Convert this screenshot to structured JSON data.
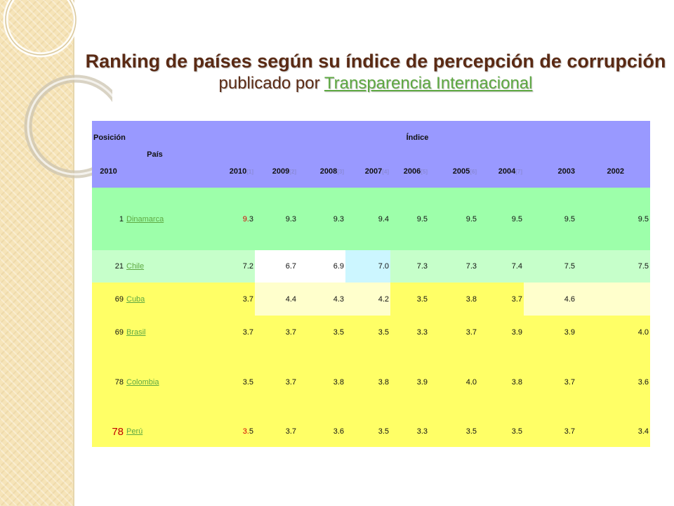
{
  "title": {
    "line1": "Ranking de países según su índice de percepción de corrupción",
    "line2_prefix": "publicado por ",
    "line2_link": "Transparencia Internacional"
  },
  "table": {
    "header": {
      "posicion": "Posición",
      "pais": "País",
      "indice": "Índice",
      "year_2010": "2010",
      "years": [
        "2010",
        "2009",
        "2008",
        "2007",
        "2006",
        "2005",
        "2004",
        "2003",
        "2002"
      ],
      "year_refs": [
        "[1]",
        "[2]",
        "[3]",
        "[4]",
        "[5]",
        "[6]",
        "[7]"
      ]
    },
    "rows": [
      {
        "rank": "1",
        "country": "Dinamarca",
        "v2010_a": "9.",
        "v2010_b": "3",
        "values": [
          "9.3",
          "9.3",
          "9.4",
          "9.5",
          "9.5",
          "9.5",
          "9.5",
          "9.5"
        ]
      },
      {
        "rank": "21",
        "country": "Chile",
        "v2010": "7.2",
        "values": [
          "6.7",
          "6.9",
          "7.0",
          "7.3",
          "7.3",
          "7.4",
          "7.5",
          "7.5"
        ]
      },
      {
        "rank": "69",
        "country": "Cuba",
        "v2010": "3.7",
        "values": [
          "4.4",
          "4.3",
          "4.2",
          "3.5",
          "3.8",
          "3.7",
          "4.6",
          ""
        ]
      },
      {
        "rank": "69",
        "country": "Brasil",
        "v2010": "3.7",
        "values": [
          "3.7",
          "3.5",
          "3.5",
          "3.3",
          "3.7",
          "3.9",
          "3.9",
          "4.0"
        ]
      },
      {
        "rank": "78",
        "country": "Colombia",
        "v2010": "3.5",
        "values": [
          "3.7",
          "3.8",
          "3.8",
          "3.9",
          "4.0",
          "3.8",
          "3.7",
          "3.6"
        ]
      },
      {
        "rank": "78",
        "country": "Perú",
        "v2010_a": "3.",
        "v2010_b": "5",
        "values": [
          "3.7",
          "3.6",
          "3.5",
          "3.3",
          "3.5",
          "3.5",
          "3.7",
          "3.4"
        ]
      }
    ]
  },
  "colors": {
    "header": "#9999ff",
    "green": "#9dffaa",
    "mint": "#c6ffca",
    "yellow": "#ffff66",
    "link": "#5ea842",
    "title": "#5a2a14"
  }
}
